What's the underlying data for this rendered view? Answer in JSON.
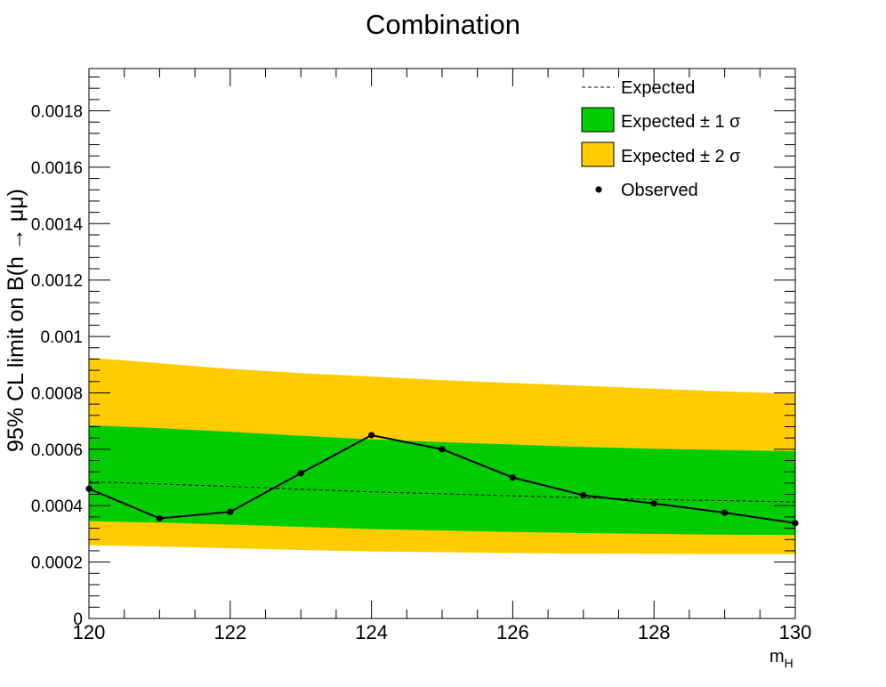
{
  "chart_data": {
    "type": "line",
    "title": "Combination",
    "xlabel": "m_H",
    "ylabel": "95% CL limit on B(h → μμ)",
    "xlim": [
      120,
      130
    ],
    "ylim": [
      0,
      0.00195
    ],
    "x_ticks": [
      "120",
      "122",
      "124",
      "126",
      "128",
      "130"
    ],
    "y_ticks": [
      "0",
      "0.0002",
      "0.0004",
      "0.0006",
      "0.0008",
      "0.001",
      "0.0012",
      "0.0014",
      "0.0016",
      "0.0018"
    ],
    "legend_position": "top-right",
    "legend": [
      {
        "label": "Expected",
        "style": "dashed-line"
      },
      {
        "label": "Expected ± 1 σ",
        "style": "fill",
        "color": "#00cc00"
      },
      {
        "label": "Expected ± 2 σ",
        "style": "fill",
        "color": "#ffcc00"
      },
      {
        "label": "Observed",
        "style": "marker"
      }
    ],
    "x": [
      120,
      121,
      122,
      123,
      124,
      125,
      126,
      127,
      128,
      129,
      130
    ],
    "observed": [
      0.00046,
      0.000355,
      0.000378,
      0.000515,
      0.00065,
      0.0006,
      0.0005,
      0.000437,
      0.000408,
      0.000375,
      0.000338
    ],
    "expected": [
      0.000485,
      0.000477,
      0.000468,
      0.000458,
      0.000449,
      0.000442,
      0.000435,
      0.000428,
      0.000422,
      0.000418,
      0.000413
    ],
    "band_1sigma_low": [
      0.000345,
      0.00034,
      0.000333,
      0.000325,
      0.000317,
      0.000312,
      0.000307,
      0.000303,
      0.0003,
      0.000297,
      0.000296
    ],
    "band_1sigma_high": [
      0.000685,
      0.000675,
      0.000662,
      0.000648,
      0.000635,
      0.000625,
      0.000617,
      0.000608,
      0.000602,
      0.000597,
      0.000593
    ],
    "band_2sigma_low": [
      0.00026,
      0.000255,
      0.000249,
      0.000243,
      0.000238,
      0.000235,
      0.000232,
      0.00023,
      0.000229,
      0.000228,
      0.000228
    ],
    "band_2sigma_high": [
      0.000925,
      0.000905,
      0.000885,
      0.00087,
      0.000858,
      0.000845,
      0.000835,
      0.000825,
      0.000815,
      0.000805,
      0.000797
    ],
    "colors": {
      "band_1sigma": "#00cc00",
      "band_2sigma": "#ffcc00",
      "observed": "#000000",
      "expected": "#000000"
    }
  }
}
